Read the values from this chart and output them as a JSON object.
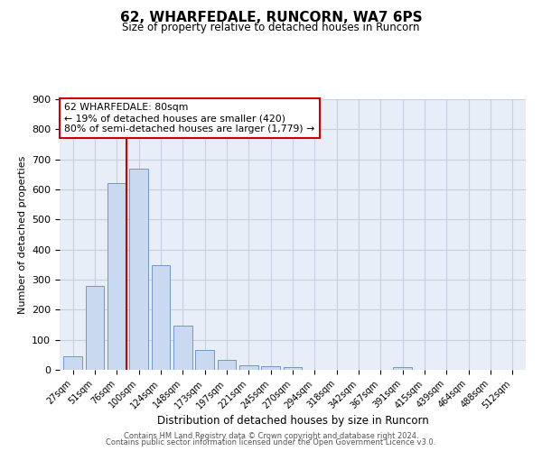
{
  "title": "62, WHARFEDALE, RUNCORN, WA7 6PS",
  "subtitle": "Size of property relative to detached houses in Runcorn",
  "xlabel": "Distribution of detached houses by size in Runcorn",
  "ylabel": "Number of detached properties",
  "bar_labels": [
    "27sqm",
    "51sqm",
    "76sqm",
    "100sqm",
    "124sqm",
    "148sqm",
    "173sqm",
    "197sqm",
    "221sqm",
    "245sqm",
    "270sqm",
    "294sqm",
    "318sqm",
    "342sqm",
    "367sqm",
    "391sqm",
    "415sqm",
    "439sqm",
    "464sqm",
    "488sqm",
    "512sqm"
  ],
  "bar_values": [
    44,
    280,
    621,
    668,
    347,
    148,
    65,
    32,
    15,
    11,
    10,
    0,
    0,
    0,
    0,
    8,
    0,
    0,
    0,
    0,
    0
  ],
  "bar_color": "#c9d9f0",
  "bar_edge_color": "#7096c8",
  "vline_color": "#cc0000",
  "vline_x_index": 2,
  "annotation_title": "62 WHARFEDALE: 80sqm",
  "annotation_line1": "← 19% of detached houses are smaller (420)",
  "annotation_line2": "80% of semi-detached houses are larger (1,779) →",
  "annotation_box_color": "#cc0000",
  "ylim": [
    0,
    900
  ],
  "yticks": [
    0,
    100,
    200,
    300,
    400,
    500,
    600,
    700,
    800,
    900
  ],
  "grid_color": "#c8d0e0",
  "background_color": "#e8eef8",
  "footer1": "Contains HM Land Registry data © Crown copyright and database right 2024.",
  "footer2": "Contains public sector information licensed under the Open Government Licence v3.0."
}
